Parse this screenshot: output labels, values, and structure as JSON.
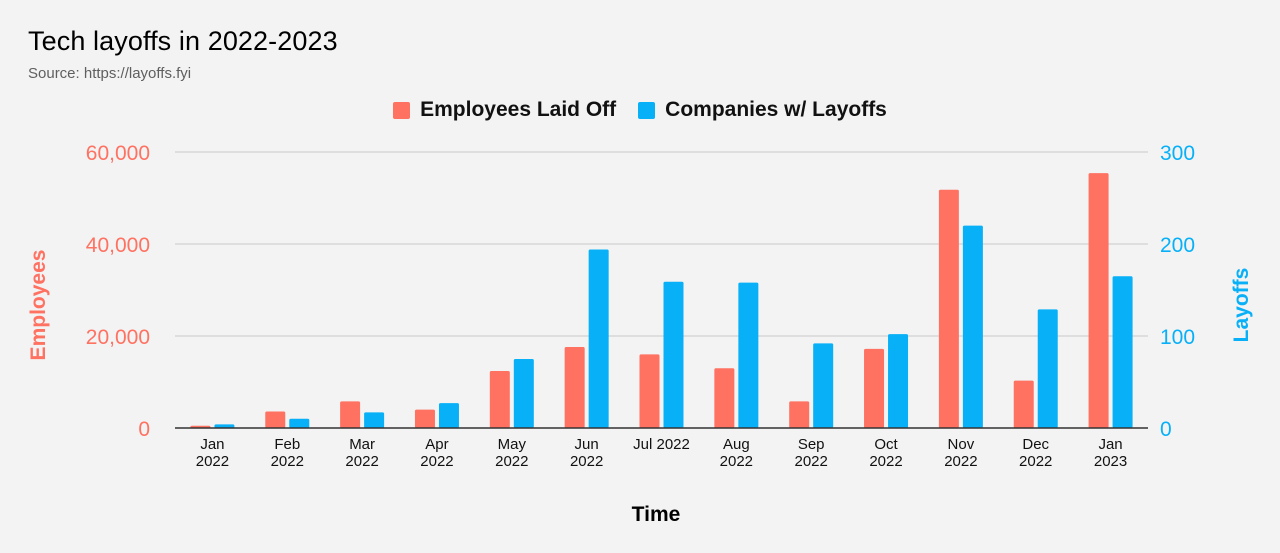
{
  "colors": {
    "employees": "#ff7262",
    "companies": "#08b0f8",
    "left_axis": "#ff7262",
    "right_axis": "#08b0f8",
    "grid": "#c8c8c8",
    "axis": "#333333"
  },
  "chart_data": {
    "type": "bar",
    "title": "Tech layoffs in 2022-2023",
    "subtitle": "Source: https://layoffs.fyi",
    "xlabel": "Time",
    "ylabel_left": "Employees",
    "ylabel_right": "Layoffs",
    "categories": [
      "Jan 2022",
      "Feb 2022",
      "Mar 2022",
      "Apr 2022",
      "May 2022",
      "Jun 2022",
      "Jul 2022",
      "Aug 2022",
      "Sep 2022",
      "Oct 2022",
      "Nov 2022",
      "Dec 2022",
      "Jan 2023"
    ],
    "category_labels": [
      [
        "Jan",
        "2022"
      ],
      [
        "Feb",
        "2022"
      ],
      [
        "Mar",
        "2022"
      ],
      [
        "Apr",
        "2022"
      ],
      [
        "May",
        "2022"
      ],
      [
        "Jun",
        "2022"
      ],
      [
        "Jul 2022"
      ],
      [
        "Aug",
        "2022"
      ],
      [
        "Sep",
        "2022"
      ],
      [
        "Oct",
        "2022"
      ],
      [
        "Nov",
        "2022"
      ],
      [
        "Dec",
        "2022"
      ],
      [
        "Jan",
        "2023"
      ]
    ],
    "series": [
      {
        "name": "Employees Laid Off",
        "axis": "left",
        "values": [
          500,
          3600,
          5800,
          4000,
          12400,
          17600,
          16000,
          13000,
          5800,
          17200,
          51800,
          10300,
          55400
        ]
      },
      {
        "name": "Companies w/ Layoffs",
        "axis": "right",
        "values": [
          4,
          10,
          17,
          27,
          75,
          194,
          159,
          158,
          92,
          102,
          220,
          129,
          165
        ]
      }
    ],
    "ylim_left": [
      0,
      60000
    ],
    "ylim_right": [
      0,
      300
    ],
    "yticks_left": [
      "0",
      "20,000",
      "40,000",
      "60,000"
    ],
    "yticks_right": [
      "0",
      "100",
      "200",
      "300"
    ],
    "grid": true,
    "legend_position": "top-center"
  }
}
